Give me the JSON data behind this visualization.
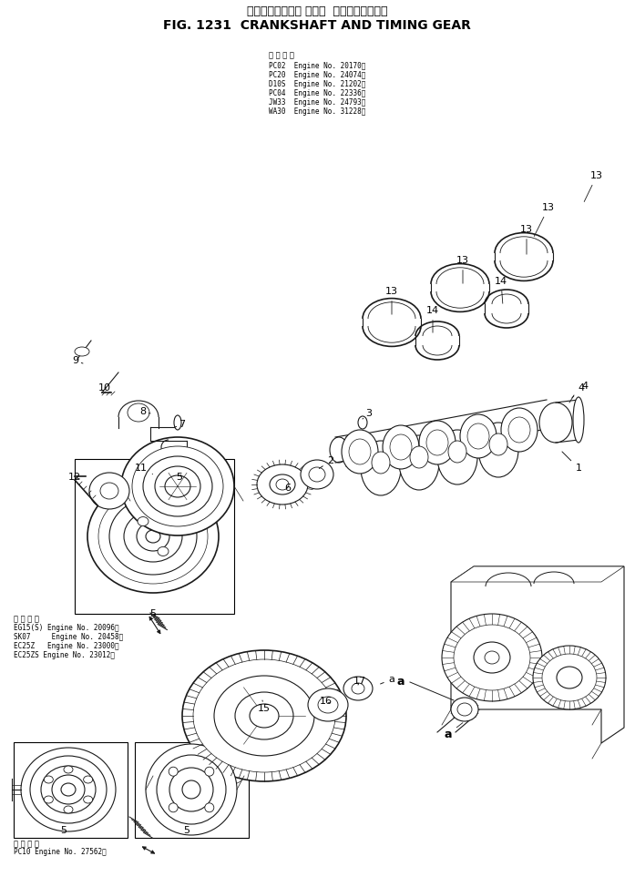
{
  "title_japanese": "クランクシャフト および  タイミングギヤー",
  "title_english": "FIG. 1231  CRANKSHAFT AND TIMING GEAR",
  "bg_color": "#ffffff",
  "line_color": "#1a1a1a",
  "fig_width": 6.97,
  "fig_height": 9.74,
  "app_text1_lines": [
    "適 用 号 機",
    "PC02  Engine No. 20170～",
    "PC20  Engine No. 24074～",
    "D10S  Engine No. 21202～",
    "PC04  Engine No. 22336～",
    "JW33  Engine No. 24793～",
    "WA30  Engine No. 31228～"
  ],
  "app_text2_lines": [
    "適 用 号 機",
    "PC10 Engine No. 27562～"
  ],
  "app_text3_lines": [
    "適 用 号 機",
    "EG15(S) Engine No. 20096～",
    "SK07     Engine No. 20458～",
    "EC25Z   Engine No. 23000～",
    "EC25ZS Engine No. 23012～"
  ]
}
